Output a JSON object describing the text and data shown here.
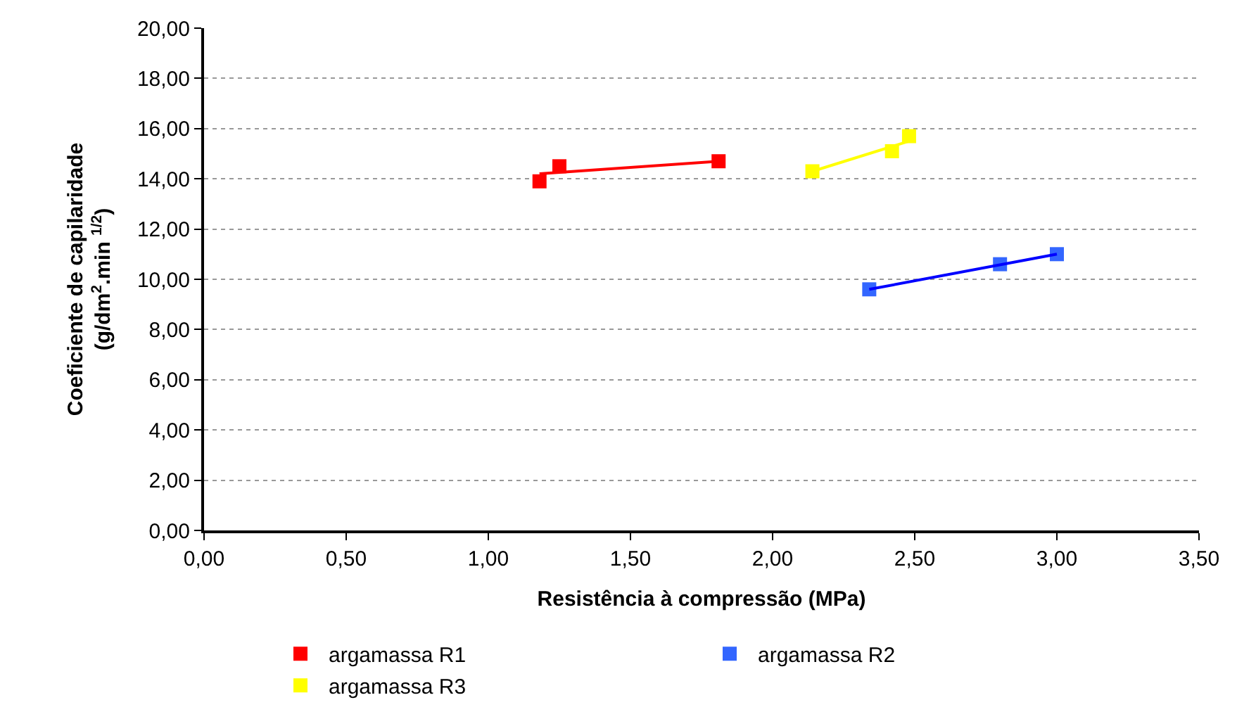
{
  "chart_data": {
    "type": "scatter",
    "xlabel": "Resistência à compressão (MPa)",
    "ylabel": "Coeficiente de capilaridade\n(g/dm$^{2}$.min $^{1/2}$)",
    "xlim": [
      0,
      3.5
    ],
    "ylim": [
      0,
      20
    ],
    "xticks": [
      {
        "value": 0,
        "label": "0,00"
      },
      {
        "value": 0.5,
        "label": "0,50"
      },
      {
        "value": 1,
        "label": "1,00"
      },
      {
        "value": 1.5,
        "label": "1,50"
      },
      {
        "value": 2,
        "label": "2,00"
      },
      {
        "value": 2.5,
        "label": "2,50"
      },
      {
        "value": 3,
        "label": "3,00"
      },
      {
        "value": 3.5,
        "label": "3,50"
      }
    ],
    "yticks": [
      {
        "value": 0,
        "label": "0,00"
      },
      {
        "value": 2,
        "label": "2,00"
      },
      {
        "value": 4,
        "label": "4,00"
      },
      {
        "value": 6,
        "label": "6,00"
      },
      {
        "value": 8,
        "label": "8,00"
      },
      {
        "value": 10,
        "label": "10,00"
      },
      {
        "value": 12,
        "label": "12,00"
      },
      {
        "value": 14,
        "label": "14,00"
      },
      {
        "value": 16,
        "label": "16,00"
      },
      {
        "value": 18,
        "label": "18,00"
      },
      {
        "value": 20,
        "label": "20,00"
      }
    ],
    "grid": "y",
    "legend": "bottom",
    "marker": "square",
    "series": [
      {
        "name": "argamassa R1",
        "color": "#ff0000",
        "x": [
          1.18,
          1.25,
          1.81
        ],
        "values": [
          13.9,
          14.5,
          14.7
        ]
      },
      {
        "name": "argamassa R2",
        "color": "#3366ff",
        "x": [
          2.34,
          2.8,
          3.0
        ],
        "values": [
          9.6,
          10.6,
          11.0
        ]
      },
      {
        "name": "argamassa R3",
        "color": "#ffff00",
        "x": [
          2.14,
          2.42,
          2.48
        ],
        "values": [
          14.3,
          15.1,
          15.7
        ]
      },
      {
        "type": "line",
        "marker": "none",
        "color": "#ff0000",
        "x": [
          1.18,
          1.81
        ],
        "values": [
          14.2,
          14.7
        ]
      },
      {
        "type": "line",
        "marker": "none",
        "color": "#0000ff",
        "x": [
          2.34,
          3.0
        ],
        "values": [
          9.6,
          11.0
        ]
      },
      {
        "type": "line",
        "marker": "none",
        "color": "#ffff00",
        "x": [
          2.14,
          2.48
        ],
        "values": [
          14.3,
          15.5
        ]
      }
    ]
  }
}
